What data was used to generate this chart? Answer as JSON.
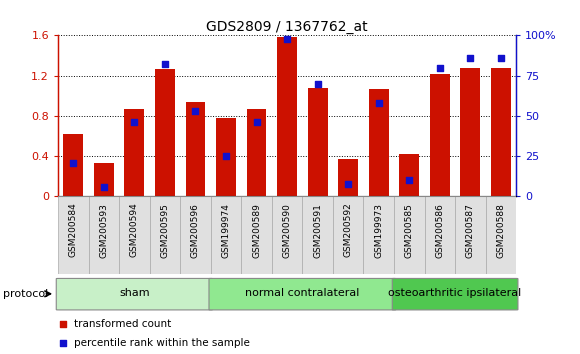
{
  "title": "GDS2809 / 1367762_at",
  "samples": [
    "GSM200584",
    "GSM200593",
    "GSM200594",
    "GSM200595",
    "GSM200596",
    "GSM199974",
    "GSM200589",
    "GSM200590",
    "GSM200591",
    "GSM200592",
    "GSM199973",
    "GSM200585",
    "GSM200586",
    "GSM200587",
    "GSM200588"
  ],
  "transformed_count": [
    0.62,
    0.33,
    0.87,
    1.27,
    0.94,
    0.78,
    0.87,
    1.58,
    1.08,
    0.37,
    1.07,
    0.42,
    1.22,
    1.28,
    1.28
  ],
  "percentile_rank": [
    21,
    6,
    46,
    82,
    53,
    25,
    46,
    98,
    70,
    8,
    58,
    10,
    80,
    86,
    86
  ],
  "groups": [
    {
      "label": "sham",
      "start": 0,
      "end": 4,
      "color": "#c8f0c8"
    },
    {
      "label": "normal contralateral",
      "start": 5,
      "end": 10,
      "color": "#90e890"
    },
    {
      "label": "osteoarthritic ipsilateral",
      "start": 11,
      "end": 14,
      "color": "#50c850"
    }
  ],
  "ylim_left": [
    0,
    1.6
  ],
  "ylim_right": [
    0,
    100
  ],
  "yticks_left": [
    0,
    0.4,
    0.8,
    1.2,
    1.6
  ],
  "ytick_labels_left": [
    "0",
    "0.4",
    "0.8",
    "1.2",
    "1.6"
  ],
  "yticks_right": [
    0,
    25,
    50,
    75,
    100
  ],
  "ytick_labels_right": [
    "0",
    "25",
    "50",
    "75",
    "100%"
  ],
  "bar_color": "#cc1100",
  "dot_color": "#1111cc",
  "bar_width": 0.65,
  "protocol_label": "protocol",
  "legend_items": [
    {
      "color": "#cc1100",
      "label": "transformed count"
    },
    {
      "color": "#1111cc",
      "label": "percentile rank within the sample"
    }
  ],
  "background_color": "#ffffff",
  "tick_label_color_left": "#cc1100",
  "tick_label_color_right": "#1111cc",
  "grid_color": "#000000",
  "spine_color_left": "#cc1100",
  "spine_color_right": "#1111cc"
}
